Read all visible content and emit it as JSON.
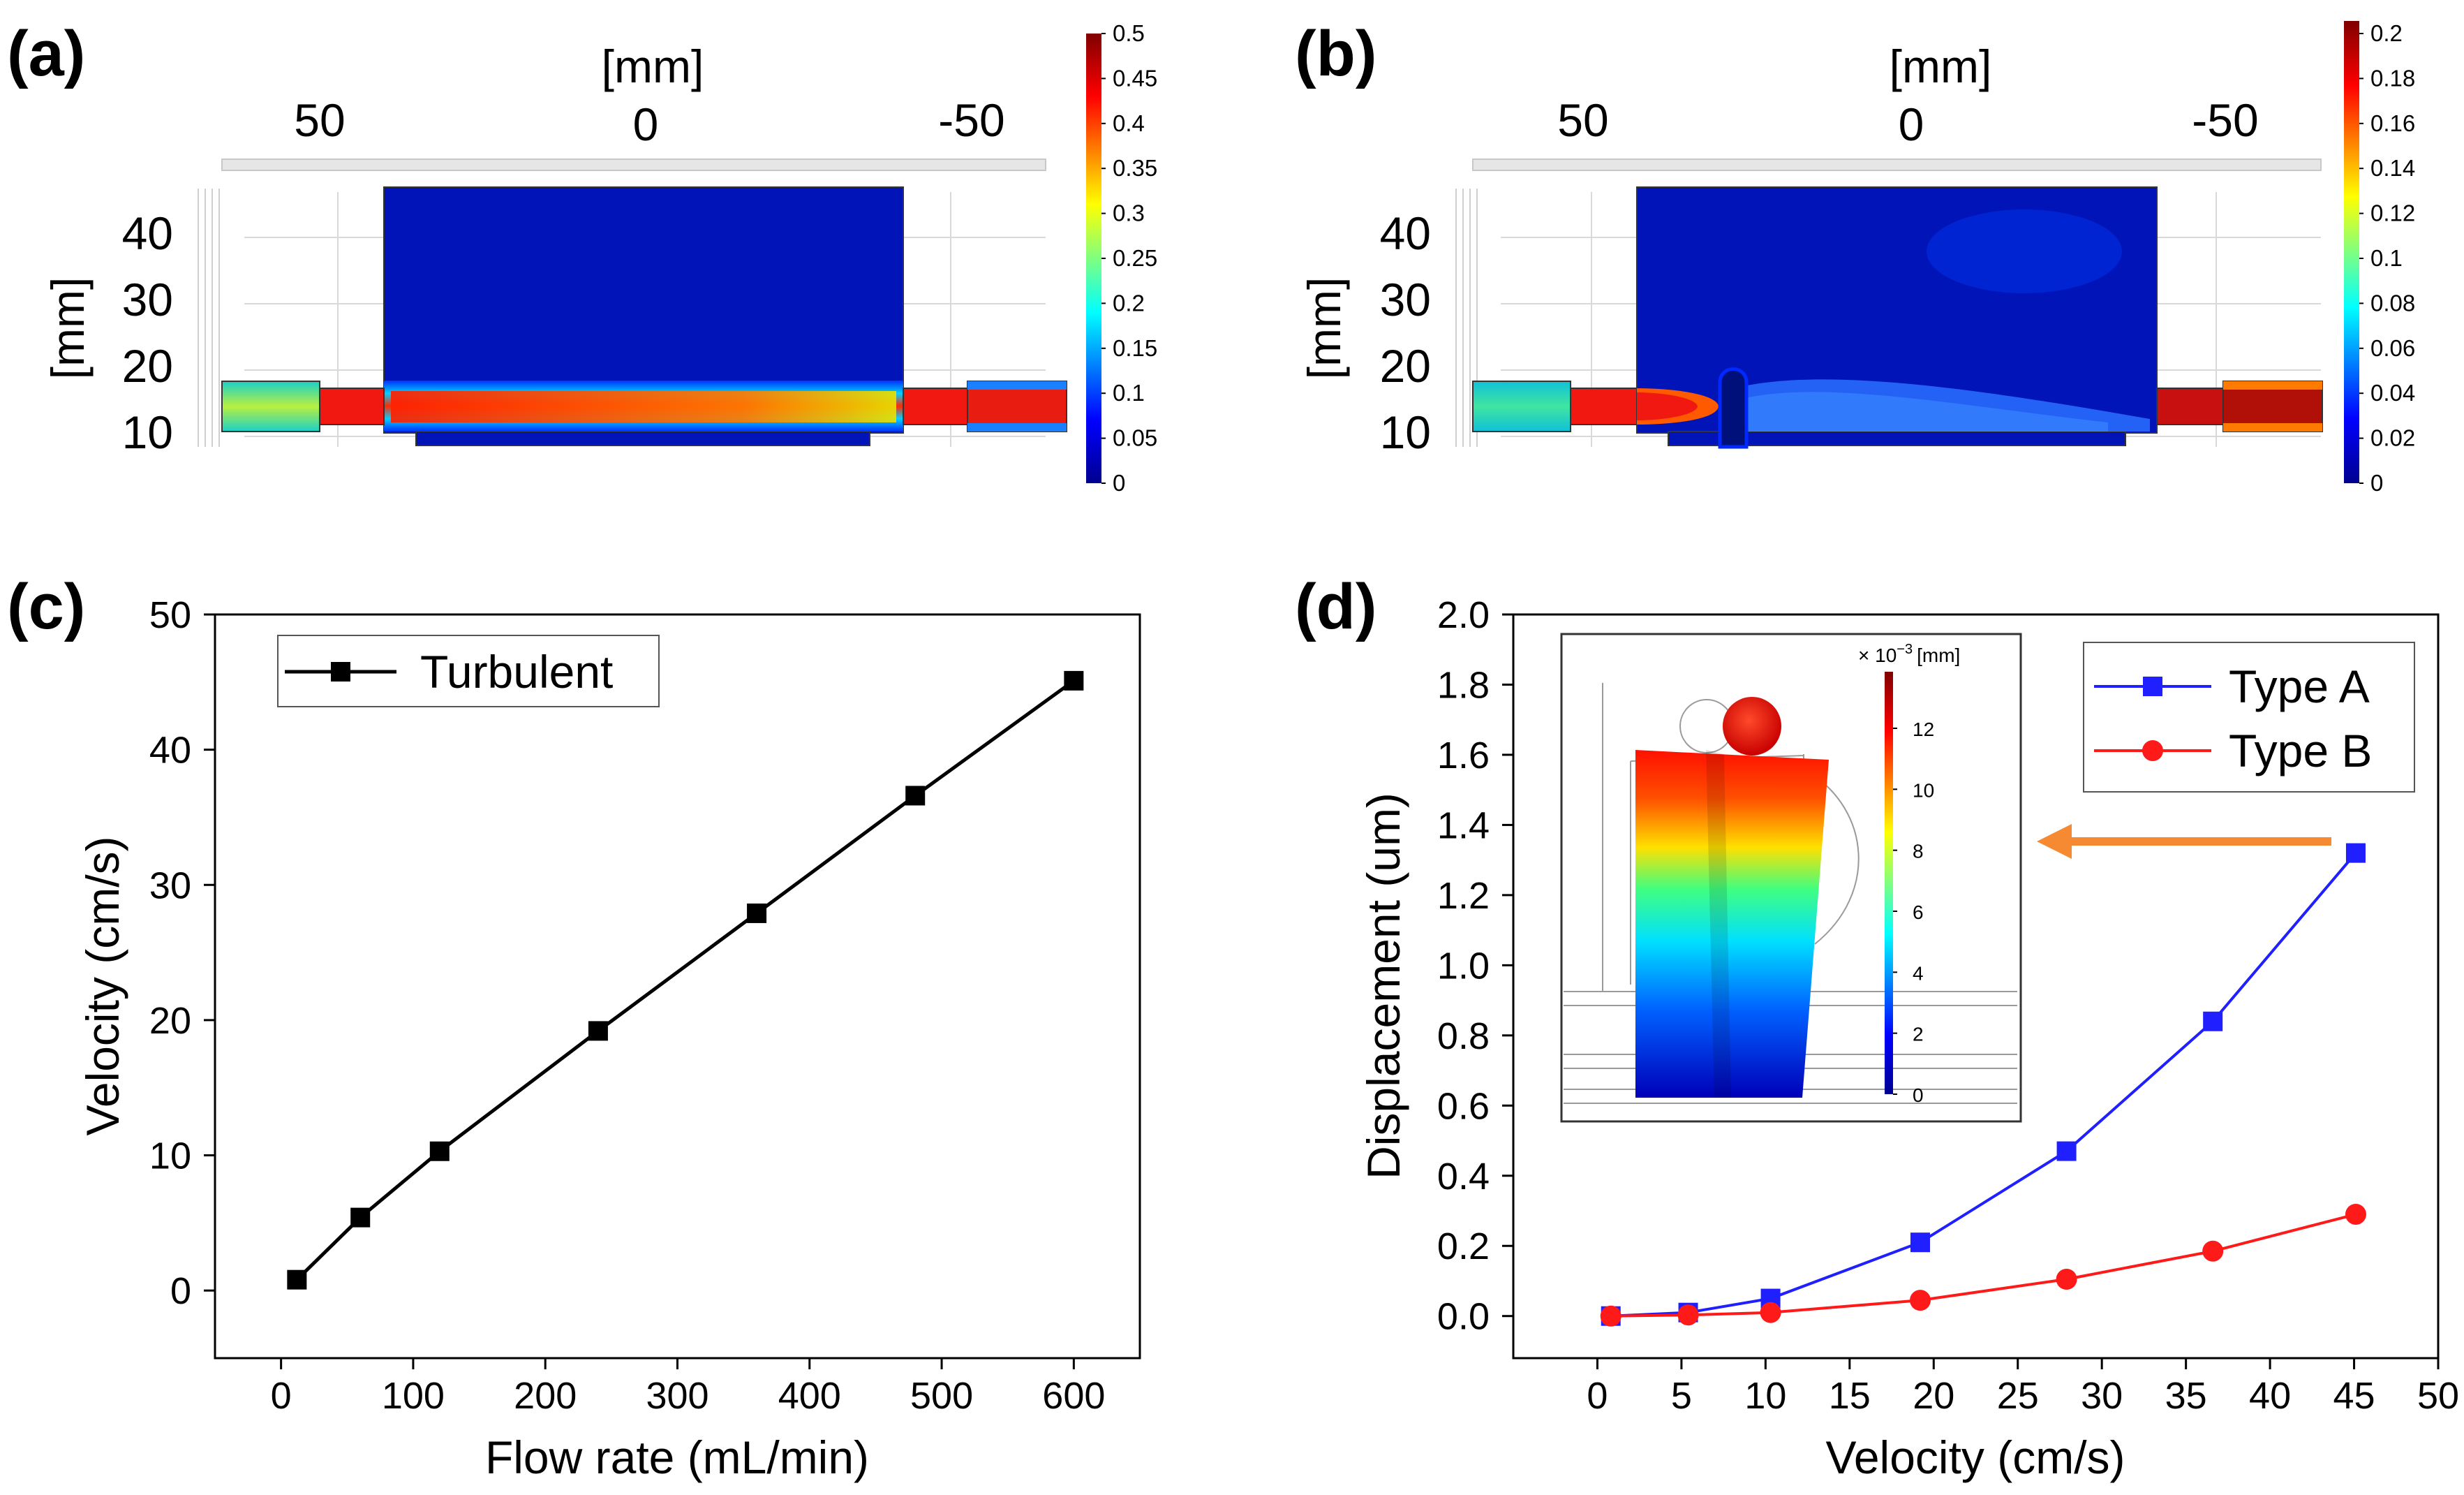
{
  "panels": {
    "a": {
      "label": "(a)",
      "x_unit": "[mm]",
      "y_unit": "[mm]",
      "x_ticks": [
        "50",
        "0",
        "-50"
      ],
      "y_ticks": [
        "40",
        "30",
        "20",
        "10"
      ],
      "colorbar_ticks": [
        "0.5",
        "0.45",
        "0.4",
        "0.35",
        "0.3",
        "0.25",
        "0.2",
        "0.15",
        "0.1",
        "0.05",
        "0"
      ]
    },
    "b": {
      "label": "(b)",
      "x_unit": "[mm]",
      "y_unit": "[mm]",
      "x_ticks": [
        "50",
        "0",
        "-50"
      ],
      "y_ticks": [
        "40",
        "30",
        "20",
        "10"
      ],
      "colorbar_ticks": [
        "0.2",
        "0.18",
        "0.16",
        "0.14",
        "0.12",
        "0.1",
        "0.08",
        "0.06",
        "0.04",
        "0.02",
        "0"
      ]
    },
    "c": {
      "label": "(c)"
    },
    "d": {
      "label": "(d)",
      "inset_unit_prefix": "× 10",
      "inset_unit_exp": "−3",
      "inset_unit": "[mm]",
      "inset_colorbar_ticks": [
        "12",
        "10",
        "8",
        "6",
        "4",
        "2",
        "0"
      ]
    }
  },
  "colors": {
    "series_black": "#000000",
    "series_blue": "#1f1fff",
    "series_red": "#ff1a1a",
    "arrow": "#f58a33"
  },
  "chart_data": [
    {
      "type": "line",
      "panel": "c",
      "xlabel": "Flow rate (mL/min)",
      "ylabel": "Velocity (cm/s)",
      "xlim": [
        -50,
        650
      ],
      "ylim": [
        -5,
        50
      ],
      "x_ticks": [
        0,
        100,
        200,
        300,
        400,
        500,
        600
      ],
      "y_ticks": [
        0,
        10,
        20,
        30,
        40,
        50
      ],
      "legend_position": "top-left",
      "series": [
        {
          "name": "Turbulent",
          "marker": "square",
          "x": [
            12,
            60,
            120,
            240,
            360,
            480,
            600
          ],
          "y": [
            0.8,
            5.4,
            10.3,
            19.2,
            27.9,
            36.6,
            45.1
          ]
        }
      ]
    },
    {
      "type": "line",
      "panel": "d",
      "xlabel": "Velocity (cm/s)",
      "ylabel": "Displacement (um)",
      "xlim": [
        -5,
        50
      ],
      "ylim": [
        -0.12,
        2.0
      ],
      "x_ticks": [
        0,
        5,
        10,
        15,
        20,
        25,
        30,
        35,
        40,
        45,
        50
      ],
      "y_ticks": [
        0.0,
        0.2,
        0.4,
        0.6,
        0.8,
        1.0,
        1.2,
        1.4,
        1.6,
        1.8,
        2.0
      ],
      "legend_position": "top-right",
      "series": [
        {
          "name": "Type A",
          "marker": "square",
          "x": [
            0.8,
            5.4,
            10.3,
            19.2,
            27.9,
            36.6,
            45.1
          ],
          "y": [
            0.0,
            0.01,
            0.05,
            0.21,
            0.47,
            0.84,
            1.32
          ]
        },
        {
          "name": "Type B",
          "marker": "circle",
          "x": [
            0.8,
            5.4,
            10.3,
            19.2,
            27.9,
            36.6,
            45.1
          ],
          "y": [
            0.0,
            0.003,
            0.01,
            0.045,
            0.105,
            0.185,
            0.29
          ]
        }
      ]
    }
  ]
}
